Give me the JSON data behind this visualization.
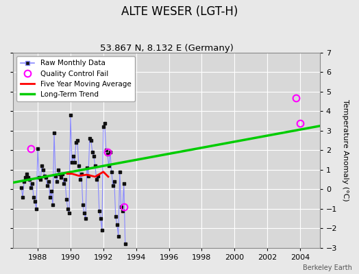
{
  "title": "ALTE WESER (LGT-H)",
  "subtitle": "53.867 N, 8.132 E (Germany)",
  "ylabel": "Temperature Anomaly (°C)",
  "watermark": "Berkeley Earth",
  "xlim": [
    1986.5,
    2005.2
  ],
  "ylim": [
    -3,
    7
  ],
  "yticks": [
    -3,
    -2,
    -1,
    0,
    1,
    2,
    3,
    4,
    5,
    6,
    7
  ],
  "xticks": [
    1988,
    1990,
    1992,
    1994,
    1996,
    1998,
    2000,
    2002,
    2004
  ],
  "fig_bg_color": "#e8e8e8",
  "plot_bg_color": "#d8d8d8",
  "grid_color": "#ffffff",
  "raw_x": [
    1987.0,
    1987.083,
    1987.167,
    1987.25,
    1987.333,
    1987.417,
    1987.5,
    1987.583,
    1987.667,
    1987.75,
    1987.833,
    1987.917,
    1988.0,
    1988.083,
    1988.167,
    1988.25,
    1988.333,
    1988.417,
    1988.5,
    1988.583,
    1988.667,
    1988.75,
    1988.833,
    1988.917,
    1989.0,
    1989.083,
    1989.167,
    1989.25,
    1989.333,
    1989.417,
    1989.5,
    1989.583,
    1989.667,
    1989.75,
    1989.833,
    1989.917,
    1990.0,
    1990.083,
    1990.167,
    1990.25,
    1990.333,
    1990.417,
    1990.5,
    1990.583,
    1990.667,
    1990.75,
    1990.833,
    1990.917,
    1991.0,
    1991.083,
    1991.167,
    1991.25,
    1991.333,
    1991.417,
    1991.5,
    1991.583,
    1991.667,
    1991.75,
    1991.833,
    1991.917,
    1992.0,
    1992.083,
    1992.167,
    1992.25,
    1992.333,
    1992.417,
    1992.5,
    1992.583,
    1992.667,
    1992.75,
    1992.833,
    1992.917,
    1993.0,
    1993.083,
    1993.167,
    1993.25,
    1993.333
  ],
  "raw_y": [
    0.1,
    -0.4,
    0.4,
    0.6,
    0.8,
    0.6,
    0.5,
    0.1,
    0.3,
    -0.4,
    -0.6,
    -1.0,
    2.1,
    0.6,
    0.5,
    1.2,
    1.0,
    0.7,
    0.6,
    0.2,
    0.4,
    -0.4,
    -0.1,
    -0.8,
    2.9,
    0.7,
    0.4,
    1.0,
    0.8,
    0.6,
    0.8,
    0.3,
    0.5,
    -0.5,
    -1.0,
    -1.2,
    3.8,
    1.4,
    1.7,
    1.4,
    2.4,
    2.5,
    1.2,
    0.5,
    0.8,
    -0.8,
    -1.2,
    -1.5,
    1.1,
    0.7,
    2.6,
    2.5,
    1.9,
    1.7,
    1.2,
    0.5,
    0.7,
    -1.1,
    -1.5,
    -2.1,
    3.2,
    3.4,
    2.0,
    1.8,
    1.2,
    1.9,
    0.9,
    0.2,
    0.4,
    -1.4,
    -1.8,
    -2.4,
    0.9,
    -0.9,
    -1.1,
    0.3,
    -2.8
  ],
  "qc_fail_x": [
    1987.583,
    1992.25,
    1993.25,
    2003.75,
    2004.0
  ],
  "qc_fail_y": [
    2.1,
    1.9,
    -0.9,
    4.7,
    3.4
  ],
  "moving_avg_x": [
    1989.8,
    1990.1,
    1990.5,
    1991.0,
    1991.5,
    1992.0,
    1992.3
  ],
  "moving_avg_y": [
    0.8,
    0.8,
    0.7,
    0.75,
    0.65,
    0.9,
    0.65
  ],
  "trend_x": [
    1986.5,
    2005.2
  ],
  "trend_y": [
    0.35,
    3.25
  ],
  "raw_line_color": "#8888ff",
  "raw_marker_color": "#111111",
  "qc_color": "#ff00ff",
  "moving_avg_color": "#ff0000",
  "trend_color": "#00cc00",
  "title_fontsize": 12,
  "subtitle_fontsize": 9.5,
  "axis_fontsize": 8,
  "ylabel_fontsize": 8
}
